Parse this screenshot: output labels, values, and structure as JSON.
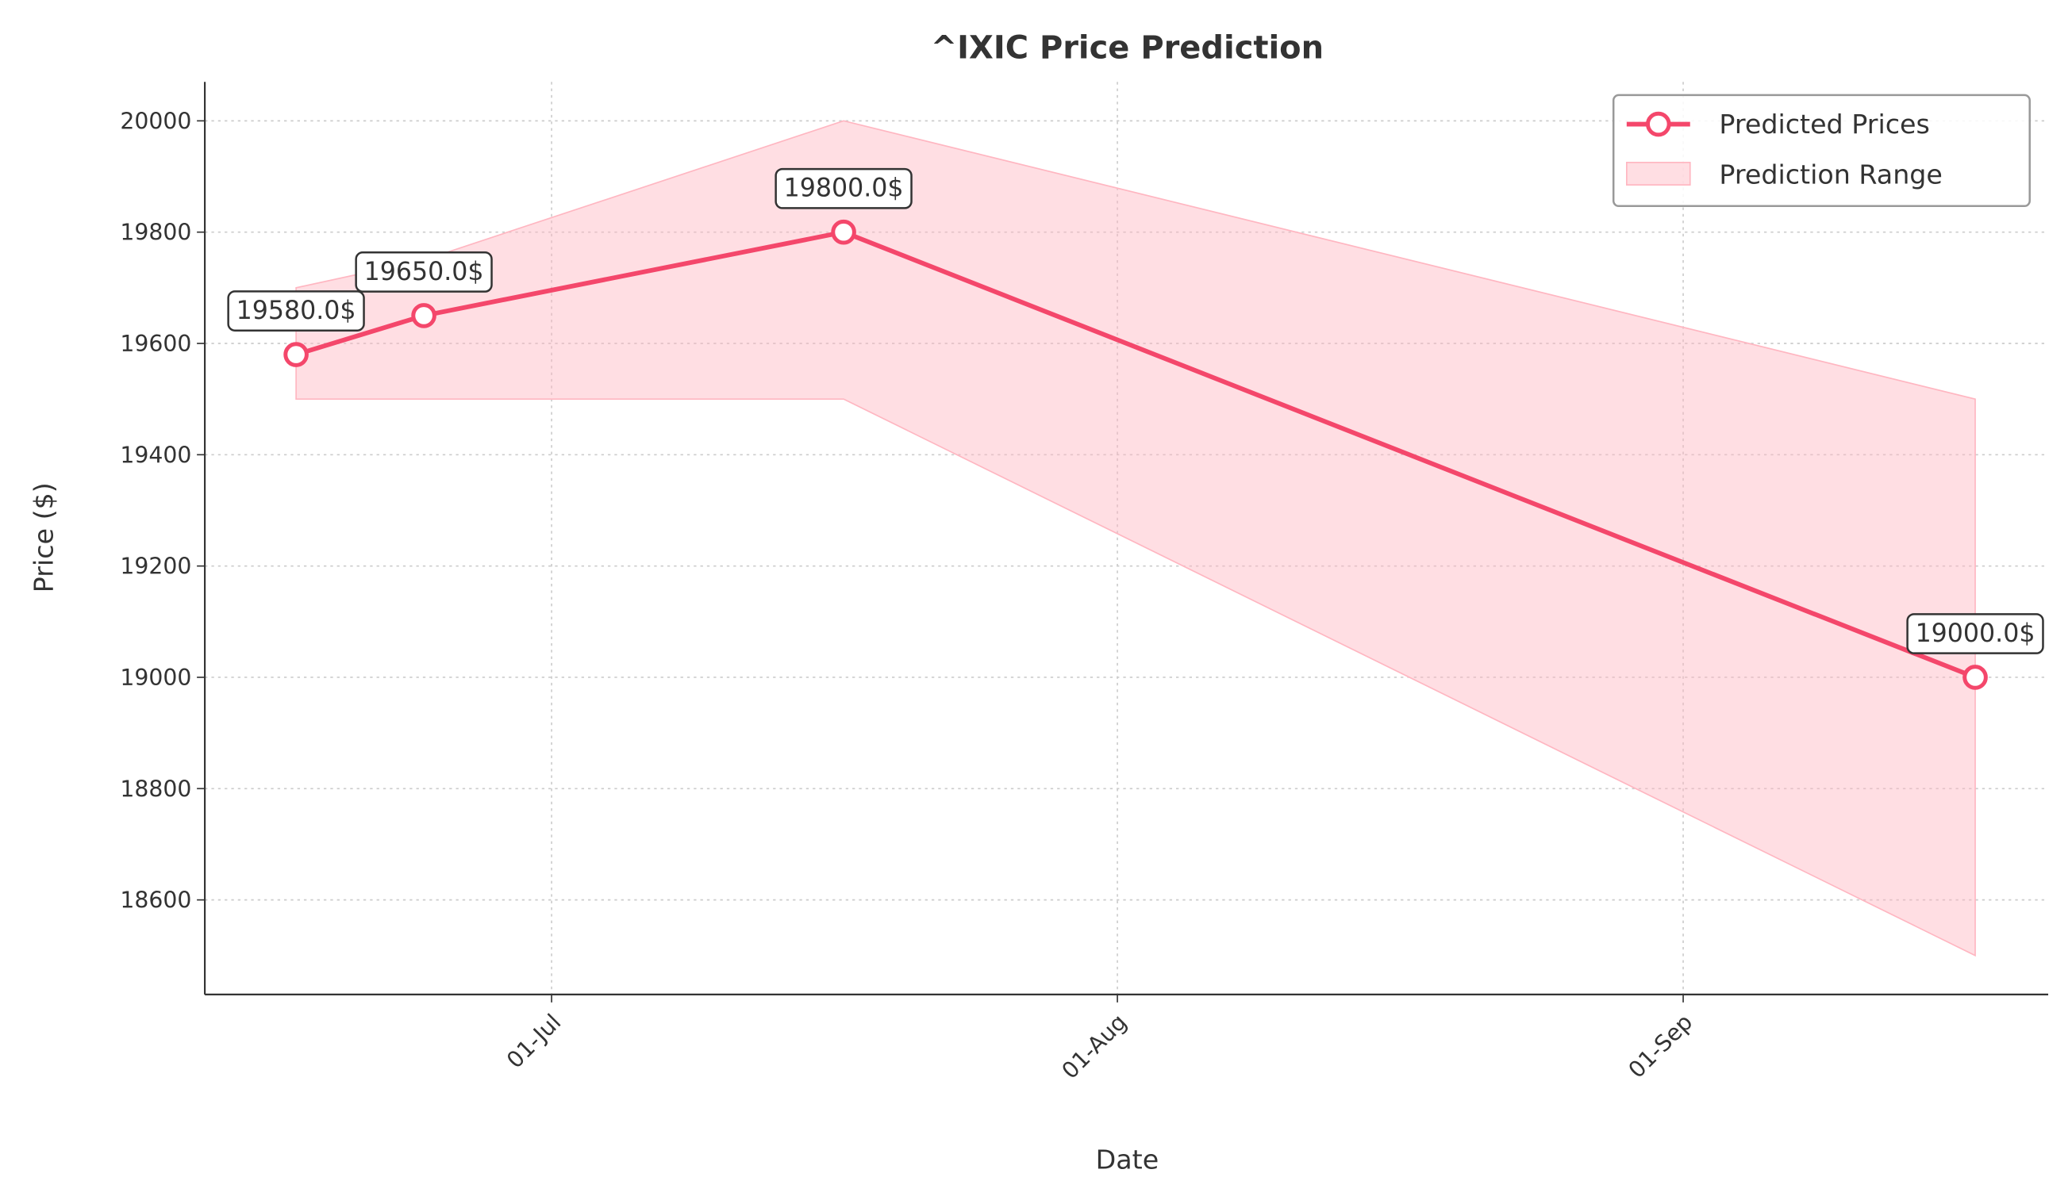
{
  "chart_data": {
    "type": "line",
    "title": "^IXIC Price Prediction",
    "x_label": "Date",
    "y_label": "Price ($)",
    "x": [
      "17-Jun",
      "24-Jun",
      "17-Jul",
      "17-Sep"
    ],
    "series": [
      {
        "name": "Predicted Prices",
        "color": "#f4476b",
        "values": [
          19580,
          19650,
          19800,
          19000
        ],
        "value_labels": [
          "19580.0$",
          "19650.0$",
          "19800.0$",
          "19000.0$"
        ]
      }
    ],
    "range": {
      "name": "Prediction Range",
      "color": "#ffb6c1",
      "lower": [
        19500,
        19500,
        19500,
        18500
      ],
      "upper": [
        19700,
        19750,
        20000,
        19500
      ]
    },
    "xlim": [
      "12-Jun",
      "21-Sep"
    ],
    "xticks": [
      "01-Jul",
      "01-Aug",
      "01-Sep"
    ],
    "ylim": [
      18430,
      20070
    ],
    "yticks": [
      18600,
      18800,
      19000,
      19200,
      19400,
      19600,
      19800,
      20000
    ],
    "grid": true,
    "legend": "upper right"
  }
}
